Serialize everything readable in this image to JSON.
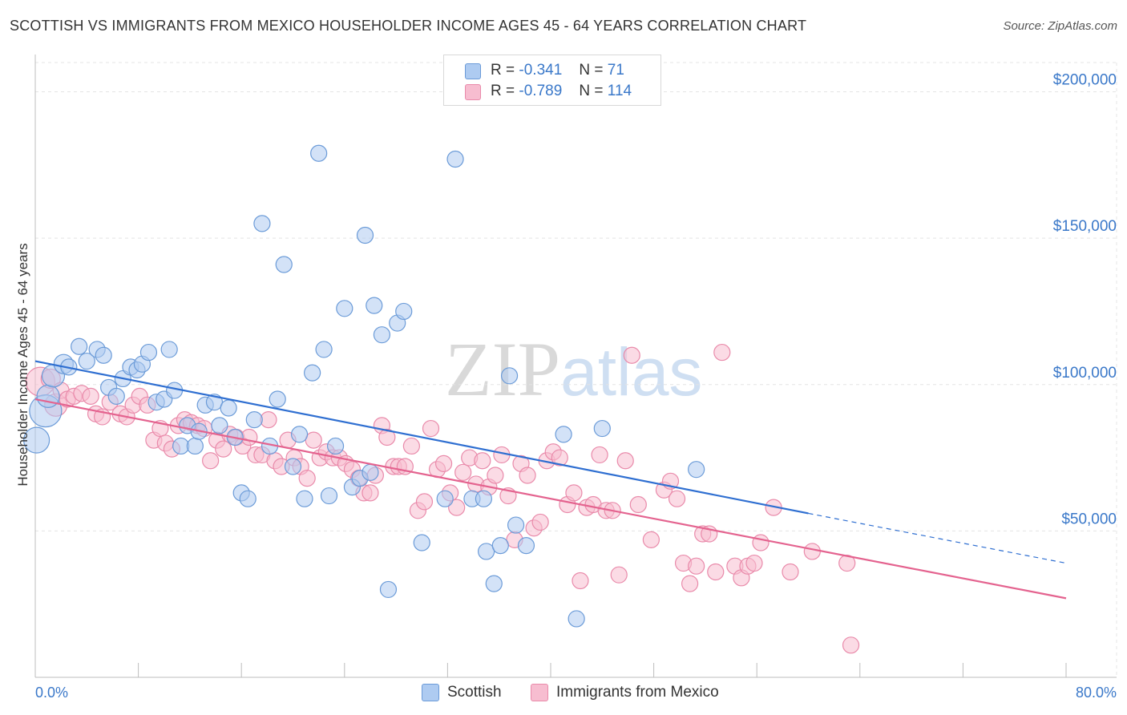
{
  "title": "SCOTTISH VS IMMIGRANTS FROM MEXICO HOUSEHOLDER INCOME AGES 45 - 64 YEARS CORRELATION CHART",
  "source": "Source: ZipAtlas.com",
  "watermark": {
    "zip": "ZIP",
    "atlas": "atlas"
  },
  "legend": {
    "rows": [
      {
        "r_label": "R =",
        "r_value": "-0.341",
        "n_label": "N =",
        "n_value": "71"
      },
      {
        "r_label": "R =",
        "r_value": "-0.789",
        "n_label": "N =",
        "n_value": "114"
      }
    ]
  },
  "bottom_legend": [
    "Scottish",
    "Immigrants from Mexico"
  ],
  "colors": {
    "scottish_fill": "#aecbf1",
    "scottish_stroke": "#6b9bd8",
    "scottish_line": "#2f6fd1",
    "mexico_fill": "#f7bdd0",
    "mexico_stroke": "#e98aaa",
    "mexico_line": "#e4638f",
    "grid": "#e4e4e4",
    "axis_text": "#3a78c9"
  },
  "chart_data": {
    "type": "scatter",
    "title": "SCOTTISH VS IMMIGRANTS FROM MEXICO HOUSEHOLDER INCOME AGES 45 - 64 YEARS CORRELATION CHART",
    "ylabel": "Householder Income Ages 45 - 64 years",
    "xlabel": "",
    "xlim": [
      0,
      80
    ],
    "ylim": [
      0,
      210000
    ],
    "x_tick_labels": [
      "0.0%",
      "80.0%"
    ],
    "y_ticks": [
      50000,
      100000,
      150000,
      200000
    ],
    "y_tick_labels": [
      "$50,000",
      "$100,000",
      "$150,000",
      "$200,000"
    ],
    "grid": true,
    "legend_position": "top-center",
    "series": [
      {
        "name": "Scottish",
        "r": -0.341,
        "n": 71,
        "trend": {
          "x": [
            0,
            60
          ],
          "y": [
            108000,
            56000
          ],
          "dashed_to": [
            80,
            39000
          ]
        },
        "points": [
          [
            0.1,
            81000,
            16
          ],
          [
            0.8,
            91000,
            20
          ],
          [
            1.0,
            96000,
            14
          ],
          [
            1.4,
            103000,
            14
          ],
          [
            2.2,
            107000,
            12
          ],
          [
            2.6,
            106000,
            10
          ],
          [
            3.4,
            113000,
            10
          ],
          [
            4.0,
            108000,
            10
          ],
          [
            4.8,
            112000,
            10
          ],
          [
            5.3,
            110000,
            10
          ],
          [
            5.7,
            99000,
            10
          ],
          [
            6.3,
            96000,
            10
          ],
          [
            6.8,
            102000,
            10
          ],
          [
            7.4,
            106000,
            10
          ],
          [
            7.9,
            105000,
            10
          ],
          [
            8.3,
            107000,
            10
          ],
          [
            8.8,
            111000,
            10
          ],
          [
            9.4,
            94000,
            10
          ],
          [
            10.0,
            95000,
            10
          ],
          [
            10.4,
            112000,
            10
          ],
          [
            10.8,
            98000,
            10
          ],
          [
            11.3,
            79000,
            10
          ],
          [
            11.8,
            86000,
            10
          ],
          [
            12.4,
            79000,
            10
          ],
          [
            12.7,
            84000,
            10
          ],
          [
            13.2,
            93000,
            10
          ],
          [
            13.9,
            94000,
            10
          ],
          [
            14.3,
            86000,
            10
          ],
          [
            15.0,
            92000,
            10
          ],
          [
            15.5,
            82000,
            10
          ],
          [
            16.0,
            63000,
            10
          ],
          [
            16.5,
            61000,
            10
          ],
          [
            17.0,
            88000,
            10
          ],
          [
            17.6,
            155000,
            10
          ],
          [
            18.2,
            79000,
            10
          ],
          [
            18.8,
            95000,
            10
          ],
          [
            19.3,
            141000,
            10
          ],
          [
            20.0,
            72000,
            10
          ],
          [
            20.5,
            83000,
            10
          ],
          [
            20.9,
            61000,
            10
          ],
          [
            21.5,
            104000,
            10
          ],
          [
            22.0,
            179000,
            10
          ],
          [
            22.4,
            112000,
            10
          ],
          [
            22.8,
            62000,
            10
          ],
          [
            23.3,
            79000,
            10
          ],
          [
            24.0,
            126000,
            10
          ],
          [
            24.6,
            65000,
            10
          ],
          [
            25.2,
            68000,
            10
          ],
          [
            25.6,
            151000,
            10
          ],
          [
            26.0,
            70000,
            10
          ],
          [
            26.3,
            127000,
            10
          ],
          [
            26.9,
            117000,
            10
          ],
          [
            27.4,
            30000,
            10
          ],
          [
            28.1,
            121000,
            10
          ],
          [
            28.6,
            125000,
            10
          ],
          [
            30.0,
            46000,
            10
          ],
          [
            31.8,
            61000,
            10
          ],
          [
            32.6,
            177000,
            10
          ],
          [
            33.9,
            61000,
            10
          ],
          [
            34.8,
            61000,
            10
          ],
          [
            35.0,
            43000,
            10
          ],
          [
            35.6,
            32000,
            10
          ],
          [
            36.1,
            45000,
            10
          ],
          [
            36.8,
            103000,
            10
          ],
          [
            37.3,
            52000,
            10
          ],
          [
            38.1,
            45000,
            10
          ],
          [
            41.0,
            83000,
            10
          ],
          [
            42.0,
            20000,
            10
          ],
          [
            44.0,
            85000,
            10
          ],
          [
            51.3,
            71000,
            10
          ]
        ]
      },
      {
        "name": "Immigrants from Mexico",
        "r": -0.789,
        "n": 114,
        "trend": {
          "x": [
            0,
            80
          ],
          "y": [
            95000,
            27000
          ]
        },
        "points": [
          [
            0.4,
            101000,
            18
          ],
          [
            1.2,
            102000,
            12
          ],
          [
            1.6,
            93000,
            14
          ],
          [
            2.0,
            98000,
            10
          ],
          [
            2.5,
            95000,
            10
          ],
          [
            3.0,
            96000,
            10
          ],
          [
            3.6,
            97000,
            10
          ],
          [
            4.3,
            96000,
            10
          ],
          [
            4.7,
            90000,
            10
          ],
          [
            5.2,
            89000,
            10
          ],
          [
            5.8,
            94000,
            10
          ],
          [
            6.6,
            90000,
            10
          ],
          [
            7.1,
            89000,
            10
          ],
          [
            7.6,
            93000,
            10
          ],
          [
            8.1,
            96000,
            10
          ],
          [
            8.7,
            93000,
            10
          ],
          [
            9.2,
            81000,
            10
          ],
          [
            9.7,
            85000,
            10
          ],
          [
            10.1,
            80000,
            10
          ],
          [
            10.6,
            78000,
            10
          ],
          [
            11.1,
            86000,
            10
          ],
          [
            11.6,
            88000,
            10
          ],
          [
            12.1,
            87000,
            10
          ],
          [
            12.6,
            86000,
            10
          ],
          [
            13.1,
            85000,
            10
          ],
          [
            13.6,
            74000,
            10
          ],
          [
            14.1,
            81000,
            10
          ],
          [
            14.6,
            78000,
            10
          ],
          [
            15.1,
            83000,
            10
          ],
          [
            15.6,
            82000,
            10
          ],
          [
            16.1,
            79000,
            10
          ],
          [
            16.6,
            82000,
            10
          ],
          [
            17.1,
            76000,
            10
          ],
          [
            17.6,
            76000,
            10
          ],
          [
            18.1,
            88000,
            10
          ],
          [
            18.6,
            74000,
            10
          ],
          [
            19.1,
            72000,
            10
          ],
          [
            19.6,
            81000,
            10
          ],
          [
            20.1,
            75000,
            10
          ],
          [
            20.6,
            72000,
            10
          ],
          [
            21.1,
            68000,
            10
          ],
          [
            21.6,
            81000,
            10
          ],
          [
            22.1,
            75000,
            10
          ],
          [
            22.6,
            77000,
            10
          ],
          [
            23.1,
            75000,
            10
          ],
          [
            23.6,
            75000,
            10
          ],
          [
            24.1,
            73000,
            10
          ],
          [
            24.6,
            71000,
            10
          ],
          [
            25.1,
            68000,
            10
          ],
          [
            25.5,
            63000,
            10
          ],
          [
            26.0,
            63000,
            10
          ],
          [
            26.4,
            69000,
            10
          ],
          [
            26.9,
            86000,
            10
          ],
          [
            27.3,
            82000,
            10
          ],
          [
            27.8,
            72000,
            10
          ],
          [
            28.2,
            72000,
            10
          ],
          [
            28.7,
            72000,
            10
          ],
          [
            29.2,
            79000,
            10
          ],
          [
            29.7,
            57000,
            10
          ],
          [
            30.2,
            60000,
            10
          ],
          [
            30.7,
            85000,
            10
          ],
          [
            31.2,
            71000,
            10
          ],
          [
            31.7,
            73000,
            10
          ],
          [
            32.2,
            63000,
            10
          ],
          [
            32.7,
            58000,
            10
          ],
          [
            33.2,
            70000,
            10
          ],
          [
            33.7,
            75000,
            10
          ],
          [
            34.2,
            66000,
            10
          ],
          [
            34.7,
            74000,
            10
          ],
          [
            35.2,
            65000,
            10
          ],
          [
            35.7,
            69000,
            10
          ],
          [
            36.2,
            76000,
            10
          ],
          [
            36.7,
            62000,
            10
          ],
          [
            37.2,
            47000,
            10
          ],
          [
            37.7,
            73000,
            10
          ],
          [
            38.2,
            69000,
            10
          ],
          [
            38.7,
            51000,
            10
          ],
          [
            39.2,
            53000,
            10
          ],
          [
            39.7,
            74000,
            10
          ],
          [
            40.2,
            77000,
            10
          ],
          [
            40.7,
            75000,
            10
          ],
          [
            41.3,
            59000,
            10
          ],
          [
            41.8,
            63000,
            10
          ],
          [
            42.3,
            33000,
            10
          ],
          [
            42.8,
            58000,
            10
          ],
          [
            43.3,
            59000,
            10
          ],
          [
            43.8,
            76000,
            10
          ],
          [
            44.3,
            57000,
            10
          ],
          [
            44.8,
            57000,
            10
          ],
          [
            45.3,
            35000,
            10
          ],
          [
            45.8,
            74000,
            10
          ],
          [
            46.3,
            110000,
            10
          ],
          [
            46.8,
            59000,
            10
          ],
          [
            47.8,
            47000,
            10
          ],
          [
            48.8,
            64000,
            10
          ],
          [
            49.3,
            67000,
            10
          ],
          [
            49.8,
            61000,
            10
          ],
          [
            50.3,
            39000,
            10
          ],
          [
            50.8,
            32000,
            10
          ],
          [
            51.3,
            38000,
            10
          ],
          [
            51.8,
            49000,
            10
          ],
          [
            52.3,
            49000,
            10
          ],
          [
            52.8,
            36000,
            10
          ],
          [
            53.3,
            111000,
            10
          ],
          [
            54.3,
            38000,
            10
          ],
          [
            54.8,
            34000,
            10
          ],
          [
            55.3,
            38000,
            10
          ],
          [
            55.8,
            39000,
            10
          ],
          [
            56.3,
            46000,
            10
          ],
          [
            57.3,
            58000,
            10
          ],
          [
            58.6,
            36000,
            10
          ],
          [
            60.3,
            43000,
            10
          ],
          [
            63.0,
            39000,
            10
          ],
          [
            63.3,
            11000,
            10
          ]
        ]
      }
    ]
  }
}
